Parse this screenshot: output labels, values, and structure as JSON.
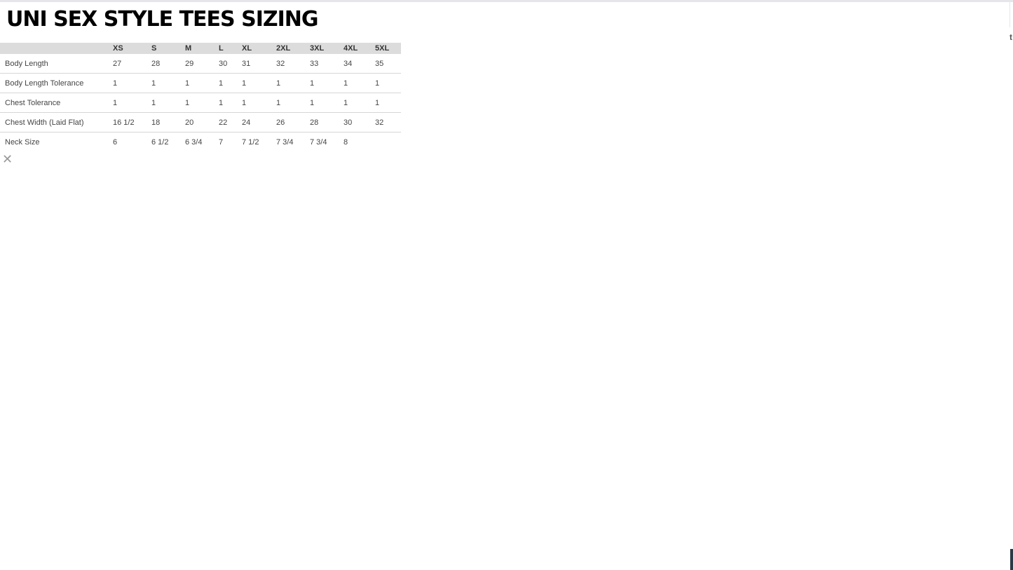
{
  "title": "UNI SEX STYLE TEES SIZING",
  "table": {
    "headers": [
      "",
      "XS",
      "S",
      "M",
      "L",
      "XL",
      "2XL",
      "3XL",
      "4XL",
      "5XL"
    ],
    "rows": [
      {
        "label": "Body Length",
        "values": [
          "27",
          "28",
          "29",
          "30",
          "31",
          "32",
          "33",
          "34",
          "35"
        ]
      },
      {
        "label": "Body Length Tolerance",
        "values": [
          "1",
          "1",
          "1",
          "1",
          "1",
          "1",
          "1",
          "1",
          "1"
        ]
      },
      {
        "label": "Chest Tolerance",
        "values": [
          "1",
          "1",
          "1",
          "1",
          "1",
          "1",
          "1",
          "1",
          "1"
        ]
      },
      {
        "label": "Chest Width (Laid Flat)",
        "values": [
          "16 1/2",
          "18",
          "20",
          "22",
          "24",
          "26",
          "28",
          "30",
          "32"
        ]
      },
      {
        "label": "Neck Size",
        "values": [
          "6",
          "6 1/2",
          "6 3/4",
          "7",
          "7 1/2",
          "7 3/4",
          "7 3/4",
          "8",
          ""
        ]
      }
    ]
  },
  "close_icon": "close-icon",
  "edge_char": "t"
}
